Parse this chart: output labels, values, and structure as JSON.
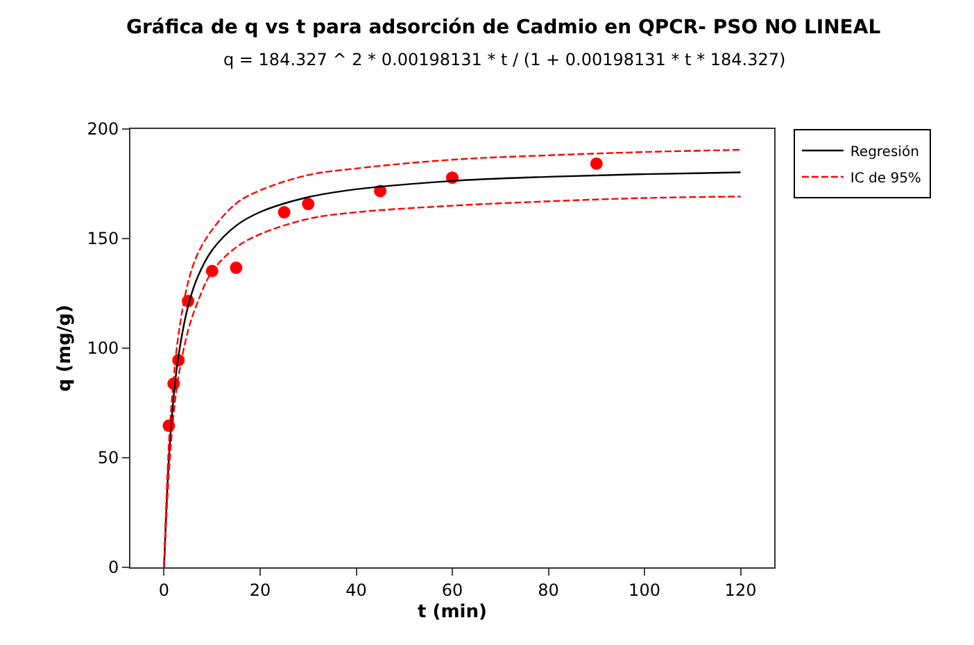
{
  "chart_data": {
    "type": "line",
    "title": "Gráfica de q vs t para adsorción de Cadmio en QPCR- PSO NO LINEAL",
    "subtitle": "q = 184.327 ^ 2 * 0.00198131 * t / (1 + 0.00198131 * t * 184.327)",
    "xlabel": "t (min)",
    "ylabel": "q (mg/g)",
    "xlim": [
      -7,
      127
    ],
    "ylim": [
      0,
      200
    ],
    "xticks": [
      0,
      20,
      40,
      60,
      80,
      100,
      120
    ],
    "yticks": [
      0,
      50,
      100,
      150,
      200
    ],
    "grid": false,
    "legend": "top right",
    "series": [
      {
        "type": "scatter",
        "color": "#ff0000",
        "marker": "circle",
        "x": [
          1,
          2,
          3,
          5,
          10,
          15,
          25,
          30,
          45,
          60,
          90
        ],
        "values": [
          64.6,
          83.8,
          94.5,
          121.5,
          135.2,
          136.7,
          162,
          165.8,
          171.7,
          177.8,
          184.2
        ]
      },
      {
        "name": "Regresión",
        "color": "#000000",
        "line_style": "solid",
        "marker": "none",
        "x": [
          0,
          1,
          2,
          3,
          5,
          7,
          10,
          15,
          20,
          30,
          40,
          60,
          80,
          100,
          120
        ],
        "values": [
          0,
          49.3,
          77.8,
          96.4,
          119.1,
          132.5,
          144.7,
          155.9,
          162.1,
          168.9,
          172.5,
          176.3,
          178.2,
          179.4,
          180.2
        ]
      },
      {
        "name": "IC de 95%",
        "color": "#ff0000",
        "line_style": "dashed",
        "marker": "none",
        "x": [
          0,
          1,
          2,
          3,
          5,
          7,
          10,
          15,
          20,
          30,
          40,
          60,
          80,
          100,
          120
        ],
        "values": [
          0,
          56,
          86,
          106,
          130,
          143,
          154,
          166,
          172,
          179,
          182,
          186,
          188,
          189.5,
          190.5
        ]
      },
      {
        "color": "#ff0000",
        "line_style": "dashed",
        "marker": "none",
        "x": [
          0,
          1,
          2,
          3,
          5,
          7,
          10,
          15,
          20,
          30,
          40,
          60,
          80,
          100,
          120
        ],
        "values": [
          0,
          43,
          70,
          87,
          108,
          121,
          135,
          146,
          152,
          159,
          162,
          165,
          167,
          168.5,
          169.2
        ]
      }
    ]
  }
}
